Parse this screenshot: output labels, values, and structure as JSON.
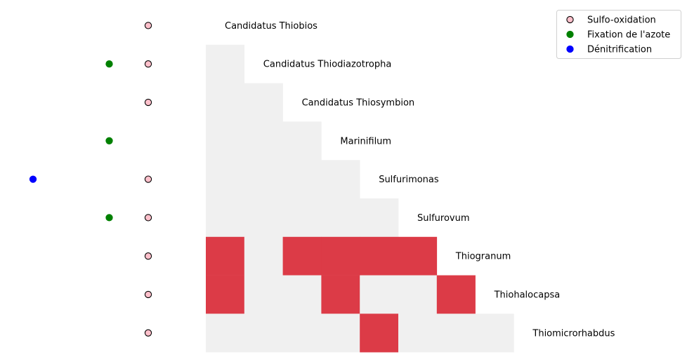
{
  "chart_data": {
    "type": "heatmap",
    "title": "",
    "xlabel": "",
    "ylabel": "",
    "rows": [
      "Candidatus Thiobios",
      "Candidatus Thiodiazotropha",
      "Candidatus Thiosymbion",
      "Marinifilum",
      "Sulfurimonas",
      "Sulfurovum",
      "Thiogranum",
      "Thiohalocapsa",
      "Thiomicrorhabdus"
    ],
    "matrix_lower_triangle": [
      [],
      [
        0
      ],
      [
        0,
        0
      ],
      [
        0,
        0,
        0
      ],
      [
        0,
        0,
        0,
        0
      ],
      [
        0,
        0,
        0,
        0,
        0
      ],
      [
        1,
        0,
        1,
        1,
        1,
        1
      ],
      [
        1,
        0,
        0,
        1,
        0,
        0,
        1
      ],
      [
        0,
        0,
        0,
        0,
        1,
        0,
        0,
        0
      ]
    ],
    "cell_colors": {
      "0": "#f0f0f0",
      "1": "#dc3b47"
    },
    "trait_markers": {
      "columns": [
        "Dénitrification",
        "Fixation de l'azote",
        "Sulfo-oxidation"
      ],
      "values": [
        [
          0,
          0,
          1
        ],
        [
          0,
          1,
          1
        ],
        [
          0,
          0,
          1
        ],
        [
          0,
          1,
          0
        ],
        [
          1,
          0,
          1
        ],
        [
          0,
          1,
          1
        ],
        [
          0,
          0,
          1
        ],
        [
          0,
          0,
          1
        ],
        [
          0,
          0,
          1
        ]
      ]
    },
    "legend": {
      "placement": "top-right",
      "entries": [
        {
          "label": "Sulfo-oxidation",
          "fill": "#ffc0cb",
          "edge": "#000000"
        },
        {
          "label": "Fixation de l'azote",
          "fill": "#008000",
          "edge": "#008000"
        },
        {
          "label": "Dénitrification",
          "fill": "#0000ff",
          "edge": "#0000ff"
        }
      ]
    }
  }
}
